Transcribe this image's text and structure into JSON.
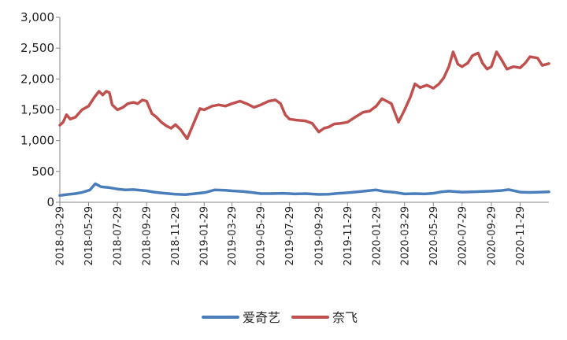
{
  "chart_data": {
    "type": "line",
    "title": "",
    "xlabel": "",
    "ylabel": "",
    "ylim": [
      0,
      3000
    ],
    "y_ticks": [
      "0",
      "500",
      "1,000",
      "1,500",
      "2,000",
      "2,500",
      "3,000"
    ],
    "y_tick_values": [
      0,
      500,
      1000,
      1500,
      2000,
      2500,
      3000
    ],
    "x_ticks": [
      "2018-03-29",
      "2018-05-29",
      "2018-07-29",
      "2018-09-29",
      "2018-11-29",
      "2019-01-29",
      "2019-03-29",
      "2019-05-29",
      "2019-07-29",
      "2019-09-29",
      "2019-11-29",
      "2020-01-29",
      "2020-03-29",
      "2020-05-29",
      "2020-07-29",
      "2020-09-29",
      "2020-11-29"
    ],
    "x_range": [
      "2018-03-29",
      "2021-01-29"
    ],
    "grid": false,
    "legend": "bottom",
    "series": [
      {
        "name": "爱奇艺",
        "color": "#4A7EBB",
        "points": [
          [
            "2018-03-29",
            110
          ],
          [
            "2018-04-15",
            128
          ],
          [
            "2018-05-01",
            140
          ],
          [
            "2018-05-15",
            160
          ],
          [
            "2018-06-01",
            200
          ],
          [
            "2018-06-12",
            300
          ],
          [
            "2018-06-25",
            250
          ],
          [
            "2018-07-10",
            240
          ],
          [
            "2018-07-29",
            215
          ],
          [
            "2018-08-15",
            200
          ],
          [
            "2018-09-01",
            205
          ],
          [
            "2018-09-29",
            185
          ],
          [
            "2018-10-15",
            165
          ],
          [
            "2018-11-01",
            150
          ],
          [
            "2018-11-29",
            130
          ],
          [
            "2018-12-20",
            125
          ],
          [
            "2019-01-10",
            140
          ],
          [
            "2019-02-01",
            160
          ],
          [
            "2019-02-20",
            200
          ],
          [
            "2019-03-15",
            195
          ],
          [
            "2019-03-29",
            185
          ],
          [
            "2019-04-20",
            175
          ],
          [
            "2019-05-10",
            160
          ],
          [
            "2019-05-29",
            140
          ],
          [
            "2019-06-20",
            140
          ],
          [
            "2019-07-15",
            145
          ],
          [
            "2019-08-10",
            135
          ],
          [
            "2019-09-01",
            140
          ],
          [
            "2019-09-29",
            128
          ],
          [
            "2019-10-20",
            130
          ],
          [
            "2019-11-10",
            145
          ],
          [
            "2019-11-29",
            155
          ],
          [
            "2019-12-20",
            170
          ],
          [
            "2020-01-15",
            190
          ],
          [
            "2020-01-29",
            200
          ],
          [
            "2020-02-15",
            175
          ],
          [
            "2020-03-10",
            160
          ],
          [
            "2020-03-29",
            135
          ],
          [
            "2020-04-20",
            140
          ],
          [
            "2020-05-10",
            135
          ],
          [
            "2020-05-29",
            145
          ],
          [
            "2020-06-15",
            170
          ],
          [
            "2020-07-01",
            180
          ],
          [
            "2020-07-29",
            165
          ],
          [
            "2020-08-20",
            170
          ],
          [
            "2020-09-10",
            175
          ],
          [
            "2020-09-29",
            180
          ],
          [
            "2020-10-20",
            190
          ],
          [
            "2020-11-05",
            205
          ],
          [
            "2020-11-29",
            165
          ],
          [
            "2020-12-20",
            160
          ],
          [
            "2021-01-10",
            165
          ],
          [
            "2021-01-29",
            170
          ]
        ]
      },
      {
        "name": "奈飞",
        "color": "#C0504D",
        "points": [
          [
            "2018-03-29",
            1250
          ],
          [
            "2018-04-05",
            1300
          ],
          [
            "2018-04-12",
            1420
          ],
          [
            "2018-04-20",
            1350
          ],
          [
            "2018-05-01",
            1380
          ],
          [
            "2018-05-15",
            1500
          ],
          [
            "2018-05-29",
            1560
          ],
          [
            "2018-06-10",
            1700
          ],
          [
            "2018-06-20",
            1800
          ],
          [
            "2018-06-28",
            1740
          ],
          [
            "2018-07-05",
            1800
          ],
          [
            "2018-07-12",
            1780
          ],
          [
            "2018-07-18",
            1580
          ],
          [
            "2018-07-29",
            1500
          ],
          [
            "2018-08-10",
            1540
          ],
          [
            "2018-08-20",
            1600
          ],
          [
            "2018-09-01",
            1620
          ],
          [
            "2018-09-10",
            1600
          ],
          [
            "2018-09-20",
            1660
          ],
          [
            "2018-09-29",
            1640
          ],
          [
            "2018-10-10",
            1440
          ],
          [
            "2018-10-20",
            1380
          ],
          [
            "2018-10-30",
            1300
          ],
          [
            "2018-11-10",
            1240
          ],
          [
            "2018-11-20",
            1200
          ],
          [
            "2018-11-29",
            1260
          ],
          [
            "2018-12-10",
            1180
          ],
          [
            "2018-12-24",
            1030
          ],
          [
            "2019-01-05",
            1250
          ],
          [
            "2019-01-20",
            1520
          ],
          [
            "2019-01-29",
            1500
          ],
          [
            "2019-02-15",
            1560
          ],
          [
            "2019-03-01",
            1580
          ],
          [
            "2019-03-15",
            1560
          ],
          [
            "2019-03-29",
            1600
          ],
          [
            "2019-04-15",
            1640
          ],
          [
            "2019-04-29",
            1600
          ],
          [
            "2019-05-15",
            1540
          ],
          [
            "2019-05-29",
            1580
          ],
          [
            "2019-06-15",
            1640
          ],
          [
            "2019-06-29",
            1660
          ],
          [
            "2019-07-10",
            1600
          ],
          [
            "2019-07-20",
            1420
          ],
          [
            "2019-07-29",
            1350
          ],
          [
            "2019-08-15",
            1330
          ],
          [
            "2019-09-01",
            1320
          ],
          [
            "2019-09-15",
            1280
          ],
          [
            "2019-09-29",
            1140
          ],
          [
            "2019-10-10",
            1200
          ],
          [
            "2019-10-20",
            1220
          ],
          [
            "2019-11-01",
            1270
          ],
          [
            "2019-11-15",
            1280
          ],
          [
            "2019-11-29",
            1300
          ],
          [
            "2019-12-15",
            1380
          ],
          [
            "2020-01-01",
            1460
          ],
          [
            "2020-01-15",
            1480
          ],
          [
            "2020-01-29",
            1560
          ],
          [
            "2020-02-10",
            1680
          ],
          [
            "2020-02-20",
            1640
          ],
          [
            "2020-03-01",
            1600
          ],
          [
            "2020-03-16",
            1300
          ],
          [
            "2020-03-29",
            1500
          ],
          [
            "2020-04-10",
            1700
          ],
          [
            "2020-04-20",
            1920
          ],
          [
            "2020-05-01",
            1860
          ],
          [
            "2020-05-15",
            1900
          ],
          [
            "2020-05-29",
            1850
          ],
          [
            "2020-06-10",
            1920
          ],
          [
            "2020-06-20",
            2020
          ],
          [
            "2020-07-01",
            2200
          ],
          [
            "2020-07-10",
            2440
          ],
          [
            "2020-07-20",
            2240
          ],
          [
            "2020-07-29",
            2200
          ],
          [
            "2020-08-10",
            2260
          ],
          [
            "2020-08-20",
            2380
          ],
          [
            "2020-09-01",
            2420
          ],
          [
            "2020-09-10",
            2260
          ],
          [
            "2020-09-20",
            2160
          ],
          [
            "2020-09-29",
            2200
          ],
          [
            "2020-10-10",
            2440
          ],
          [
            "2020-10-20",
            2320
          ],
          [
            "2020-11-01",
            2160
          ],
          [
            "2020-11-15",
            2200
          ],
          [
            "2020-11-29",
            2180
          ],
          [
            "2020-12-10",
            2260
          ],
          [
            "2020-12-20",
            2360
          ],
          [
            "2021-01-05",
            2340
          ],
          [
            "2021-01-15",
            2220
          ],
          [
            "2021-01-29",
            2250
          ]
        ]
      }
    ]
  }
}
